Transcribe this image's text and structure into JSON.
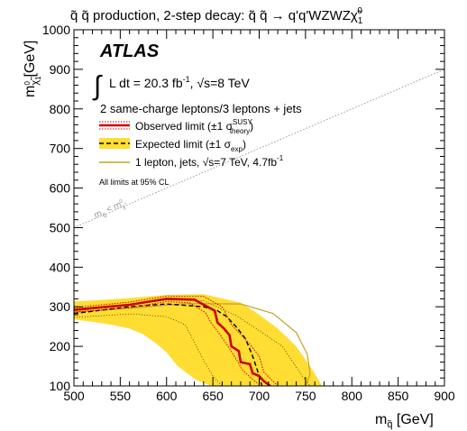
{
  "chart_data": {
    "type": "line",
    "title": {
      "pre": "q̃ q̃ production, 2-step decay: q̃ q̃ → q'q'WZWZ",
      "post": "χ̃",
      "sub": "1",
      "sup": "0"
    },
    "xlabel": {
      "main": "m",
      "sub": "q̃",
      "unit": " [GeV]"
    },
    "ylabel": {
      "main": "m",
      "sub": "χ̃",
      "subsub": "1",
      "supsub": "0",
      "unit": " [GeV]"
    },
    "xlim": [
      500,
      900
    ],
    "ylim": [
      100,
      1000
    ],
    "xticks": [
      "500",
      "550",
      "600",
      "650",
      "700",
      "750",
      "800",
      "850",
      "900"
    ],
    "yticks": [
      "100",
      "200",
      "300",
      "400",
      "500",
      "600",
      "700",
      "800",
      "900",
      "1000"
    ],
    "atlas_label": "ATLAS",
    "lumi": {
      "integral": "∫",
      "text1": "L dt = 20.3 fb",
      "sup": "-1",
      "text2": ", √s=8 TeV"
    },
    "channel": "2 same-charge leptons/3 leptons + jets",
    "cl_note": "All limits at 95% CL",
    "diag_label": {
      "m": "m",
      "lt": " < m",
      "sub1": "q̃",
      "sub2": "χ̃",
      "sup2": "0",
      "subsub2": "1"
    },
    "legend": {
      "observed": {
        "text": "Observed limit (±1 σ",
        "sup": "SUSY",
        "sub": "theory",
        "close": ")"
      },
      "expected": {
        "text": "Expected limit (±1 σ",
        "sub": "exp",
        "close": ")"
      },
      "prior": {
        "text": "1 lepton, jets, √s=7 TeV, 4.7fb",
        "sup": "-1"
      }
    },
    "colors": {
      "observed": "#cc0000",
      "expected": "#000000",
      "band": "#ffdd33",
      "prior": "#c8a020",
      "diagonal": "#999999"
    },
    "series": [
      {
        "name": "Observed limit",
        "x": [
          500,
          560,
          600,
          630,
          652,
          655,
          662,
          668,
          670,
          678,
          680,
          690,
          693,
          700,
          705,
          712
        ],
        "y": [
          292,
          305,
          320,
          318,
          290,
          260,
          245,
          228,
          200,
          188,
          160,
          155,
          132,
          125,
          112,
          100
        ]
      },
      {
        "name": "Observed +1σ theory",
        "x": [
          500,
          560,
          600,
          640,
          660,
          670,
          690,
          700,
          705,
          720
        ],
        "y": [
          298,
          312,
          327,
          326,
          300,
          255,
          205,
          175,
          135,
          100
        ]
      },
      {
        "name": "Observed -1σ theory",
        "x": [
          500,
          560,
          600,
          625,
          642,
          648,
          655,
          662,
          672,
          682,
          692,
          702
        ],
        "y": [
          286,
          298,
          313,
          310,
          285,
          260,
          238,
          215,
          180,
          140,
          118,
          100
        ]
      },
      {
        "name": "Expected limit",
        "x": [
          500,
          560,
          600,
          640,
          655,
          665,
          675,
          685,
          693,
          698,
          703
        ],
        "y": [
          283,
          300,
          307,
          300,
          290,
          275,
          250,
          220,
          175,
          140,
          100
        ]
      },
      {
        "name": "Expected ±1σ band",
        "x": [
          500,
          560,
          600,
          640,
          680,
          700,
          720,
          740,
          755,
          768,
          755,
          735,
          712,
          685,
          662,
          648,
          632,
          612,
          600,
          590,
          575,
          560,
          540,
          520,
          500
        ],
        "y": [
          313,
          322,
          330,
          332,
          310,
          280,
          245,
          200,
          150,
          100,
          100,
          100,
          100,
          100,
          100,
          100,
          115,
          150,
          185,
          205,
          230,
          245,
          255,
          262,
          268
        ]
      },
      {
        "name": "Expected +1σ",
        "x": [
          500,
          560,
          600,
          640,
          675,
          700,
          725,
          745,
          755
        ],
        "y": [
          295,
          306,
          317,
          315,
          278,
          240,
          200,
          130,
          100
        ]
      },
      {
        "name": "Expected -1σ",
        "x": [
          500,
          560,
          600,
          620,
          630,
          640,
          650,
          660
        ],
        "y": [
          273,
          282,
          275,
          255,
          210,
          165,
          125,
          100
        ]
      },
      {
        "name": "1 lepton, jets, √s=7 TeV, 4.7fb-1",
        "x": [
          500,
          560,
          620,
          680,
          715,
          740,
          752,
          755,
          750
        ],
        "y": [
          287,
          296,
          308,
          307,
          283,
          235,
          180,
          130,
          100
        ]
      }
    ],
    "diagonal": {
      "x": [
        500,
        900
      ],
      "y": [
        500,
        900
      ]
    },
    "grid": false
  }
}
